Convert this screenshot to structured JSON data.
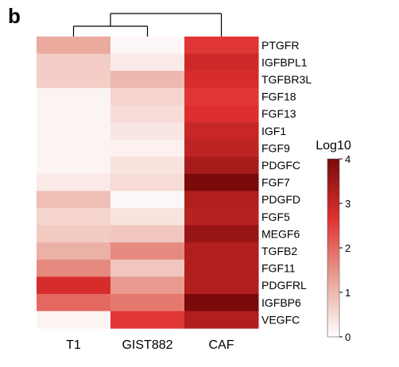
{
  "panel_label": "b",
  "chart_data": {
    "type": "heatmap",
    "rows": [
      "PTGFR",
      "IGFBPL1",
      "TGFBR3L",
      "FGF18",
      "FGF13",
      "IGF1",
      "FGF9",
      "PDGFC",
      "FGF7",
      "PDGFD",
      "FGF5",
      "MEGF6",
      "TGFB2",
      "FGF11",
      "PDGFRL",
      "IGFBP6",
      "VEGFC"
    ],
    "highlighted_rows": [
      "PDGFC"
    ],
    "columns": [
      "T1",
      "GIST882",
      "CAF"
    ],
    "values": [
      [
        1.2,
        0.1,
        2.6
      ],
      [
        0.7,
        0.3,
        2.9
      ],
      [
        0.7,
        1.0,
        2.8
      ],
      [
        0.15,
        0.6,
        2.6
      ],
      [
        0.15,
        0.5,
        2.7
      ],
      [
        0.15,
        0.35,
        3.0
      ],
      [
        0.15,
        0.2,
        3.1
      ],
      [
        0.15,
        0.4,
        3.4
      ],
      [
        0.3,
        0.5,
        4.0
      ],
      [
        0.9,
        0.1,
        3.3
      ],
      [
        0.6,
        0.4,
        3.2
      ],
      [
        0.75,
        0.8,
        3.6
      ],
      [
        1.1,
        1.6,
        3.3
      ],
      [
        1.6,
        0.8,
        3.3
      ],
      [
        2.8,
        1.4,
        3.3
      ],
      [
        2.0,
        1.8,
        4.0
      ],
      [
        0.15,
        2.6,
        3.3
      ]
    ],
    "colorbar": {
      "title": "Log10",
      "min": 0,
      "max": 4,
      "ticks": [
        "0",
        "1",
        "2",
        "3",
        "4"
      ],
      "colors": [
        "#ffffff",
        "#e8a093",
        "#e03030",
        "#7a0a0a"
      ]
    },
    "highlight_color": "#e8141a",
    "dendrogram": "columns: (T1, GIST882) joined first, then with CAF"
  }
}
